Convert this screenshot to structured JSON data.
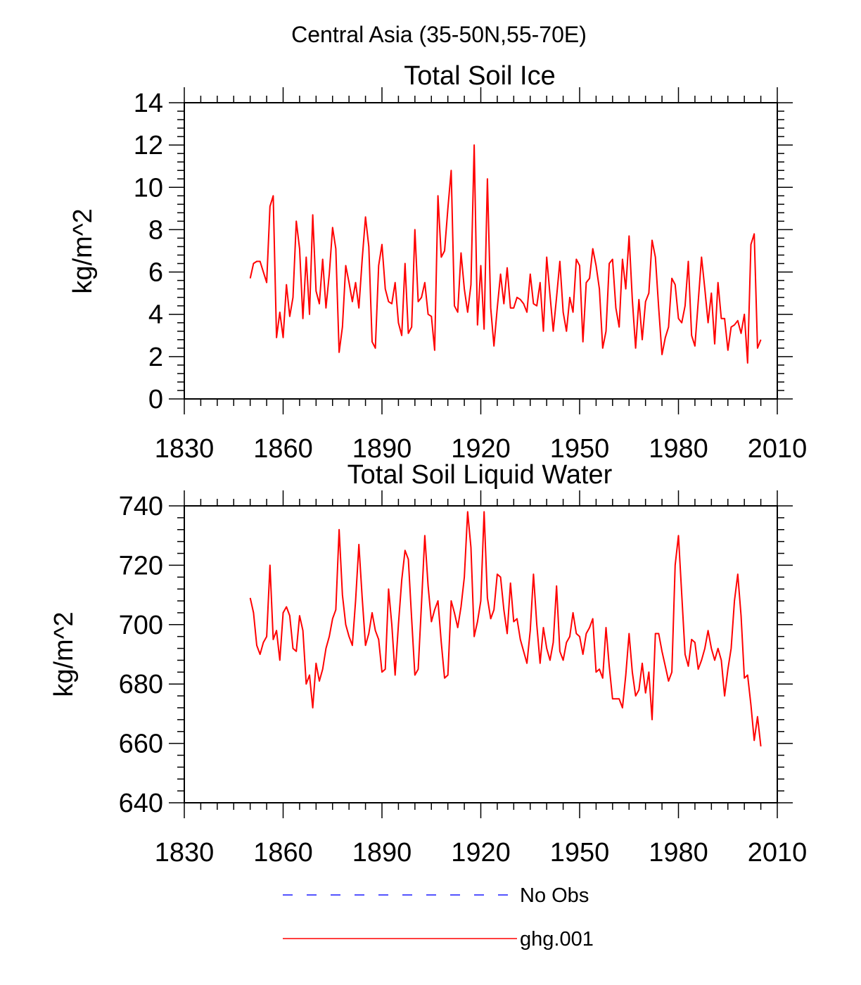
{
  "figure_title": "Central Asia (35-50N,55-70E)",
  "colors": {
    "series": "#ff0000",
    "no_obs": "#1a1aff",
    "axis": "#000000"
  },
  "legend": [
    {
      "label": "No Obs",
      "color": "#1a1aff",
      "style": "dashed"
    },
    {
      "label": "ghg.001",
      "color": "#ff0000",
      "style": "solid"
    }
  ],
  "chart_data": [
    {
      "type": "line",
      "title": "Total Soil Ice",
      "xlabel": "",
      "ylabel": "kg/m^2",
      "xlim": [
        1830,
        2010
      ],
      "ylim": [
        0,
        14
      ],
      "xticks": [
        1830,
        1860,
        1890,
        1920,
        1950,
        1980,
        2010
      ],
      "yticks": [
        0,
        2,
        4,
        6,
        8,
        10,
        12,
        14
      ],
      "grid": false,
      "series": [
        {
          "name": "ghg.001",
          "x_start": 1850,
          "x_step": 1,
          "values": [
            5.7,
            6.4,
            6.5,
            6.5,
            6.0,
            5.5,
            9.1,
            9.6,
            2.9,
            4.1,
            2.9,
            5.4,
            3.9,
            4.8,
            8.4,
            7.1,
            3.8,
            6.7,
            4.0,
            8.7,
            5.1,
            4.5,
            6.6,
            4.3,
            5.9,
            8.1,
            7.1,
            2.2,
            3.4,
            6.3,
            5.5,
            4.6,
            5.5,
            4.3,
            6.6,
            8.6,
            7.2,
            2.7,
            2.4,
            6.3,
            7.3,
            5.2,
            4.6,
            4.5,
            5.5,
            3.6,
            3.0,
            6.4,
            3.1,
            3.4,
            8.0,
            4.6,
            4.8,
            5.5,
            4.0,
            3.9,
            2.3,
            9.6,
            6.7,
            7.0,
            9.0,
            10.8,
            4.4,
            4.1,
            6.9,
            5.2,
            4.1,
            5.4,
            12.0,
            3.5,
            6.3,
            3.3,
            10.4,
            4.3,
            2.5,
            4.3,
            5.9,
            4.5,
            6.2,
            4.3,
            4.3,
            4.8,
            4.7,
            4.5,
            4.1,
            5.9,
            4.5,
            4.4,
            5.5,
            3.2,
            6.7,
            4.9,
            3.2,
            4.8,
            6.5,
            4.1,
            3.2,
            4.8,
            4.1,
            6.6,
            6.3,
            2.7,
            5.5,
            5.7,
            7.1,
            6.3,
            5.2,
            2.4,
            3.2,
            6.4,
            6.6,
            4.3,
            3.4,
            6.6,
            5.2,
            7.7,
            4.7,
            2.4,
            4.7,
            2.8,
            4.6,
            5.0,
            7.5,
            6.7,
            4.3,
            2.1,
            2.9,
            3.4,
            5.7,
            5.4,
            3.8,
            3.6,
            4.4,
            6.5,
            3.0,
            2.5,
            4.6,
            6.7,
            5.2,
            3.6,
            5.0,
            2.6,
            5.5,
            3.8,
            3.8,
            2.3,
            3.4,
            3.5,
            3.7,
            3.1,
            4.0,
            1.7,
            7.3,
            7.8,
            2.4,
            2.8
          ]
        }
      ]
    },
    {
      "type": "line",
      "title": "Total Soil Liquid Water",
      "xlabel": "",
      "ylabel": "kg/m^2",
      "xlim": [
        1830,
        2010
      ],
      "ylim": [
        640,
        740
      ],
      "xticks": [
        1830,
        1860,
        1890,
        1920,
        1950,
        1980,
        2010
      ],
      "yticks": [
        640,
        660,
        680,
        700,
        720,
        740
      ],
      "grid": false,
      "series": [
        {
          "name": "ghg.001",
          "x_start": 1850,
          "x_step": 1,
          "values": [
            709,
            704,
            693,
            690,
            694,
            696,
            720,
            695,
            698,
            688,
            704,
            706,
            703,
            692,
            691,
            703,
            698,
            680,
            683,
            672,
            687,
            681,
            685,
            692,
            696,
            702,
            705,
            732,
            710,
            700,
            696,
            693,
            708,
            727,
            709,
            693,
            697,
            704,
            698,
            695,
            684,
            685,
            712,
            700,
            683,
            700,
            715,
            725,
            722,
            702,
            683,
            685,
            707,
            730,
            713,
            701,
            705,
            708,
            694,
            682,
            683,
            708,
            704,
            699,
            706,
            716,
            738,
            726,
            696,
            701,
            708,
            738,
            709,
            702,
            705,
            717,
            716,
            705,
            697,
            714,
            701,
            702,
            695,
            691,
            687,
            698,
            717,
            700,
            687,
            699,
            692,
            688,
            694,
            713,
            691,
            688,
            694,
            696,
            704,
            697,
            696,
            690,
            697,
            699,
            702,
            684,
            685,
            682,
            699,
            686,
            675,
            675,
            675,
            672,
            683,
            697,
            684,
            676,
            678,
            687,
            677,
            684,
            668,
            697,
            697,
            691,
            686,
            681,
            684,
            720,
            730,
            710,
            690,
            686,
            695,
            694,
            685,
            688,
            692,
            698,
            692,
            688,
            692,
            688,
            676,
            685,
            692,
            708,
            717,
            703,
            682,
            683,
            673,
            661,
            669,
            659
          ]
        }
      ]
    }
  ]
}
